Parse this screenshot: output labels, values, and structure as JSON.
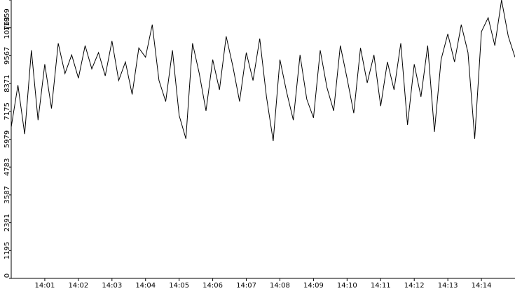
{
  "chart_data": {
    "type": "line",
    "x": [
      0,
      0.2,
      0.4,
      0.6,
      0.8,
      1,
      1.2,
      1.4,
      1.6,
      1.8,
      2,
      2.2,
      2.4,
      2.6,
      2.8,
      3,
      3.2,
      3.4,
      3.6,
      3.8,
      4,
      4.2,
      4.4,
      4.6,
      4.8,
      5,
      5.2,
      5.4,
      5.6,
      5.8,
      6,
      6.2,
      6.4,
      6.6,
      6.8,
      7,
      7.2,
      7.4,
      7.6,
      7.8,
      8,
      8.2,
      8.4,
      8.6,
      8.8,
      9,
      9.2,
      9.4,
      9.6,
      9.8,
      10,
      10.2,
      10.4,
      10.6,
      10.8,
      11,
      11.2,
      11.4,
      11.6,
      11.8,
      12,
      12.2,
      12.4,
      12.6,
      12.8,
      13,
      13.2,
      13.4,
      13.6,
      13.8,
      14,
      14.2,
      14.4,
      14.6,
      14.8,
      15
    ],
    "series": [
      {
        "color": "#000000",
        "values": [
          6500,
          8300,
          6200,
          9800,
          6800,
          9200,
          7300,
          10100,
          8800,
          9600,
          8600,
          10000,
          9000,
          9700,
          8700,
          10200,
          8500,
          9300,
          7900,
          9900,
          9500,
          10900,
          8500,
          7600,
          9800,
          7000,
          6000,
          10100,
          8800,
          7200,
          9400,
          8100,
          10400,
          9100,
          7600,
          9700,
          8500,
          10300,
          7800,
          5900,
          9400,
          8000,
          6800,
          9600,
          7700,
          6900,
          9800,
          8200,
          7200,
          10000,
          8600,
          7100,
          9900,
          8400,
          9600,
          7400,
          9300,
          8100,
          10100,
          6600,
          9200,
          7800,
          10000,
          6300,
          9400,
          10500,
          9300,
          10900,
          9700,
          6000,
          10600,
          11200,
          10000,
          11959,
          10400,
          9500
        ]
      }
    ],
    "xlim": [
      0,
      15
    ],
    "xticks": [
      {
        "value": 1,
        "label": "14:01"
      },
      {
        "value": 2,
        "label": "14:02"
      },
      {
        "value": 3,
        "label": "14:03"
      },
      {
        "value": 4,
        "label": "14:04"
      },
      {
        "value": 5,
        "label": "14:05"
      },
      {
        "value": 6,
        "label": "14:06"
      },
      {
        "value": 7,
        "label": "14:07"
      },
      {
        "value": 8,
        "label": "14:08"
      },
      {
        "value": 9,
        "label": "14:09"
      },
      {
        "value": 10,
        "label": "14:10"
      },
      {
        "value": 11,
        "label": "14:11"
      },
      {
        "value": 12,
        "label": "14:12"
      },
      {
        "value": 13,
        "label": "14:13"
      },
      {
        "value": 14,
        "label": "14:14"
      }
    ],
    "ylim": [
      0,
      11959
    ],
    "yticks": [
      0,
      1195,
      2391,
      3587,
      4783,
      5979,
      7175,
      8371,
      9567,
      10763,
      11959
    ]
  }
}
